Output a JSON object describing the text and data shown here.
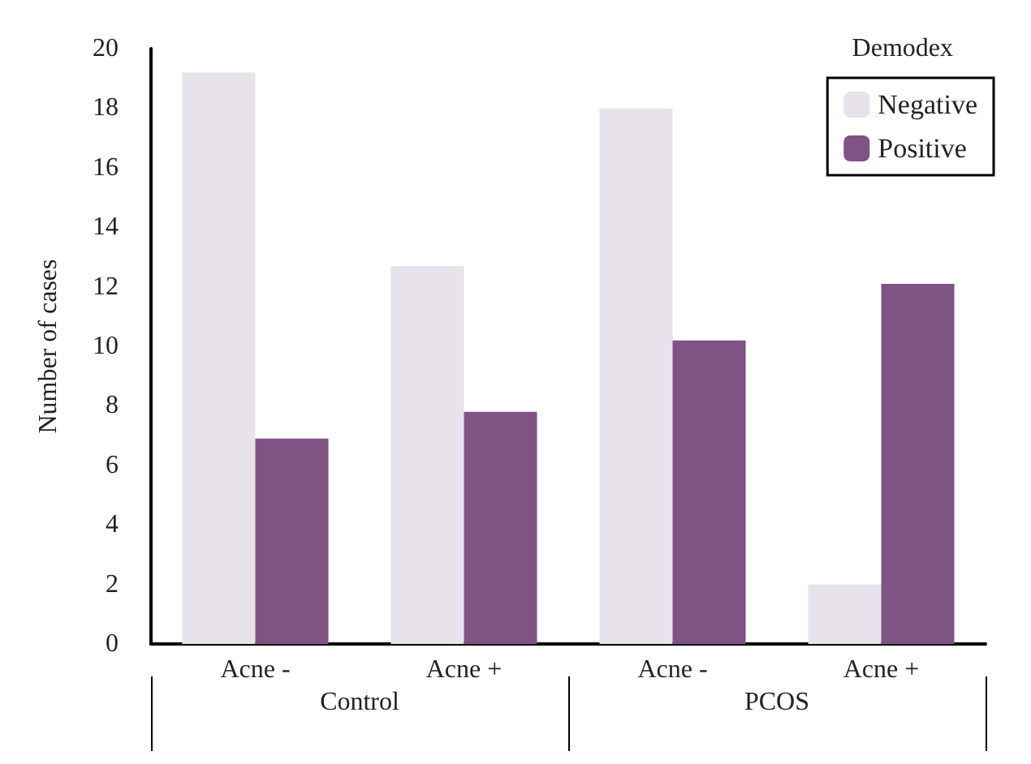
{
  "chart_data": {
    "type": "bar",
    "ylabel": "Number of cases",
    "legend_title": "Demodex",
    "legend": "top right",
    "categories": [
      "Acne -",
      "Acne +",
      "Acne -",
      "Acne +"
    ],
    "series": [
      {
        "name": "Negative",
        "color": "#e8e2ea",
        "values": [
          19.2,
          12.7,
          18,
          2
        ]
      },
      {
        "name": "Positive",
        "color": "#7f5384",
        "values": [
          6.9,
          7.8,
          10.2,
          12.1
        ]
      }
    ],
    "annotations": [
      "Control",
      "PCOS"
    ],
    "ylim": [
      0,
      20
    ],
    "yticks": [
      0,
      2,
      4,
      6,
      8,
      10,
      12,
      14,
      16,
      18,
      20
    ],
    "grid": false
  }
}
